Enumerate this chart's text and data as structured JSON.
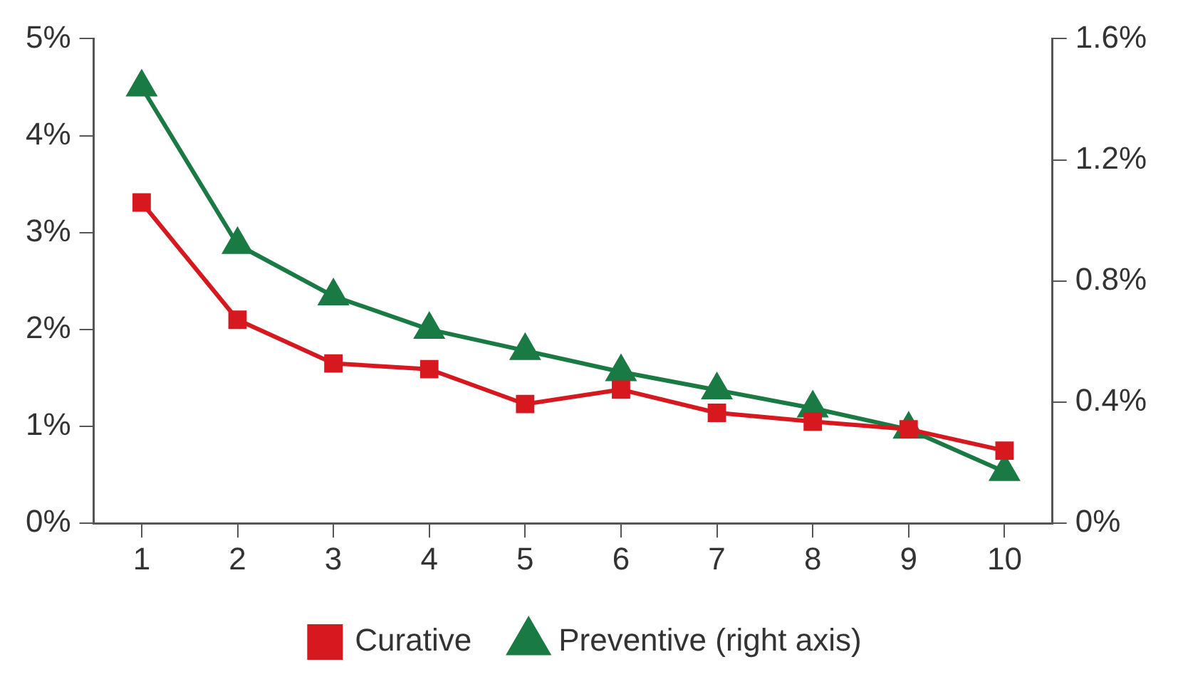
{
  "chart_data": {
    "type": "line",
    "categories": [
      "1",
      "2",
      "3",
      "4",
      "5",
      "6",
      "7",
      "8",
      "9",
      "10"
    ],
    "series": [
      {
        "name": "Curative",
        "color": "#d7191f",
        "marker": "square",
        "values": [
          3.31,
          2.1,
          1.65,
          1.59,
          1.23,
          1.38,
          1.14,
          1.05,
          0.97,
          0.75
        ]
      },
      {
        "name": "Preventive (right axis)",
        "color": "#1a7a44",
        "marker": "triangle",
        "axis": "y2",
        "values": [
          1.44,
          0.92,
          0.75,
          0.64,
          0.57,
          0.5,
          0.44,
          0.38,
          0.31,
          0.17
        ]
      }
    ],
    "ylim": [
      0,
      5
    ],
    "yticks": [
      {
        "value": 0,
        "label": "0%"
      },
      {
        "value": 1,
        "label": "1%"
      },
      {
        "value": 2,
        "label": "2%"
      },
      {
        "value": 3,
        "label": "3%"
      },
      {
        "value": 4,
        "label": "4%"
      },
      {
        "value": 5,
        "label": "5%"
      }
    ],
    "y2lim": [
      0,
      1.6
    ],
    "y2ticks": [
      {
        "value": 0,
        "label": "0%"
      },
      {
        "value": 0.4,
        "label": "0.4%"
      },
      {
        "value": 0.8,
        "label": "0.8%"
      },
      {
        "value": 1.2,
        "label": "1.2%"
      },
      {
        "value": 1.6,
        "label": "1.6%"
      }
    ],
    "grid": false,
    "legend": "bottom",
    "line_style": "solid"
  }
}
